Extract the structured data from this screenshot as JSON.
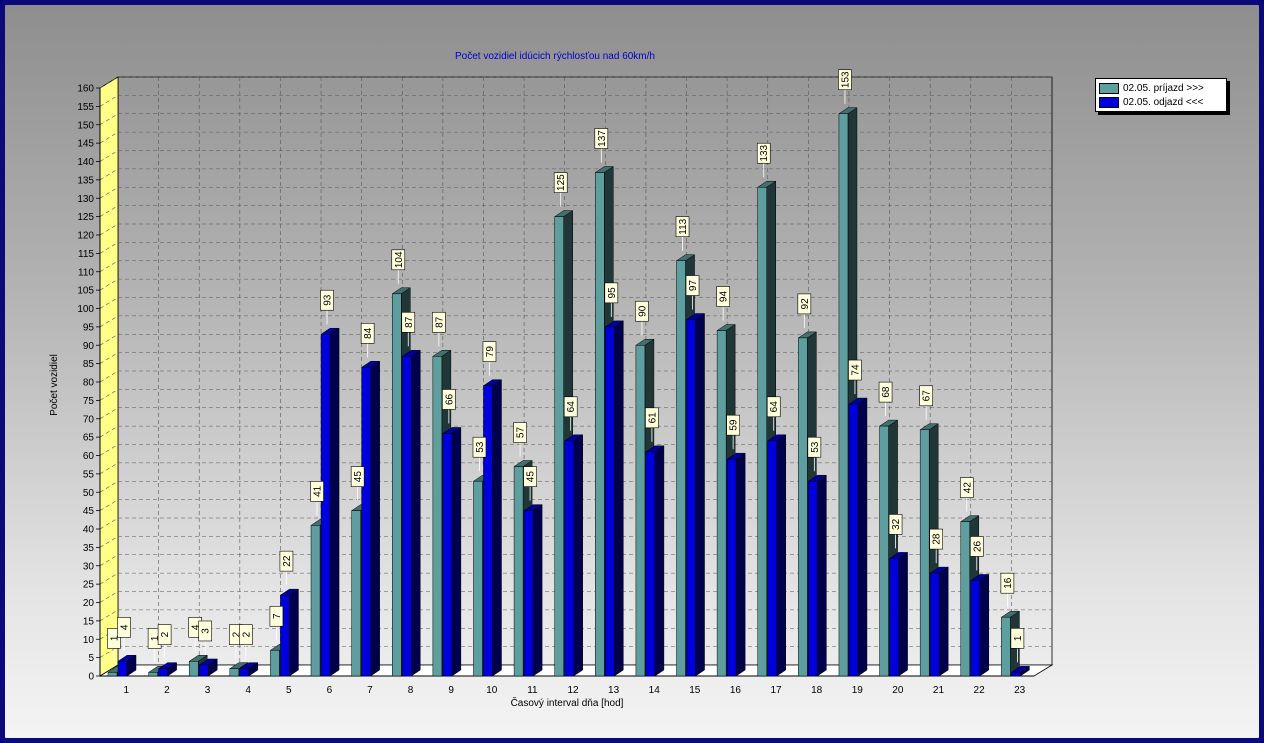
{
  "chart_data": {
    "type": "bar",
    "title": "Počet vozidiel idúcich rýchlosťou nad 60km/h",
    "xlabel": "Časový interval dňa [hod]",
    "ylabel": "Počet vozidiel",
    "categories": [
      "1",
      "2",
      "3",
      "4",
      "5",
      "6",
      "7",
      "8",
      "9",
      "10",
      "11",
      "12",
      "13",
      "14",
      "15",
      "16",
      "17",
      "18",
      "19",
      "20",
      "21",
      "22",
      "23"
    ],
    "ylim": [
      0,
      160
    ],
    "ytick_step": 5,
    "grid": true,
    "legend_position": "top-right",
    "series": [
      {
        "name": "02.05.  príjazd >>>",
        "color": "#5f9e9e",
        "values": [
          1,
          1,
          4,
          2,
          7,
          41,
          45,
          104,
          87,
          53,
          57,
          125,
          137,
          90,
          113,
          94,
          133,
          92,
          153,
          68,
          67,
          42,
          16
        ]
      },
      {
        "name": "02.05.  odjazd <<<",
        "color": "#0000dd",
        "values": [
          4,
          2,
          3,
          2,
          22,
          93,
          84,
          87,
          66,
          79,
          45,
          64,
          95,
          61,
          97,
          59,
          64,
          53,
          74,
          32,
          28,
          26,
          1
        ]
      }
    ]
  }
}
